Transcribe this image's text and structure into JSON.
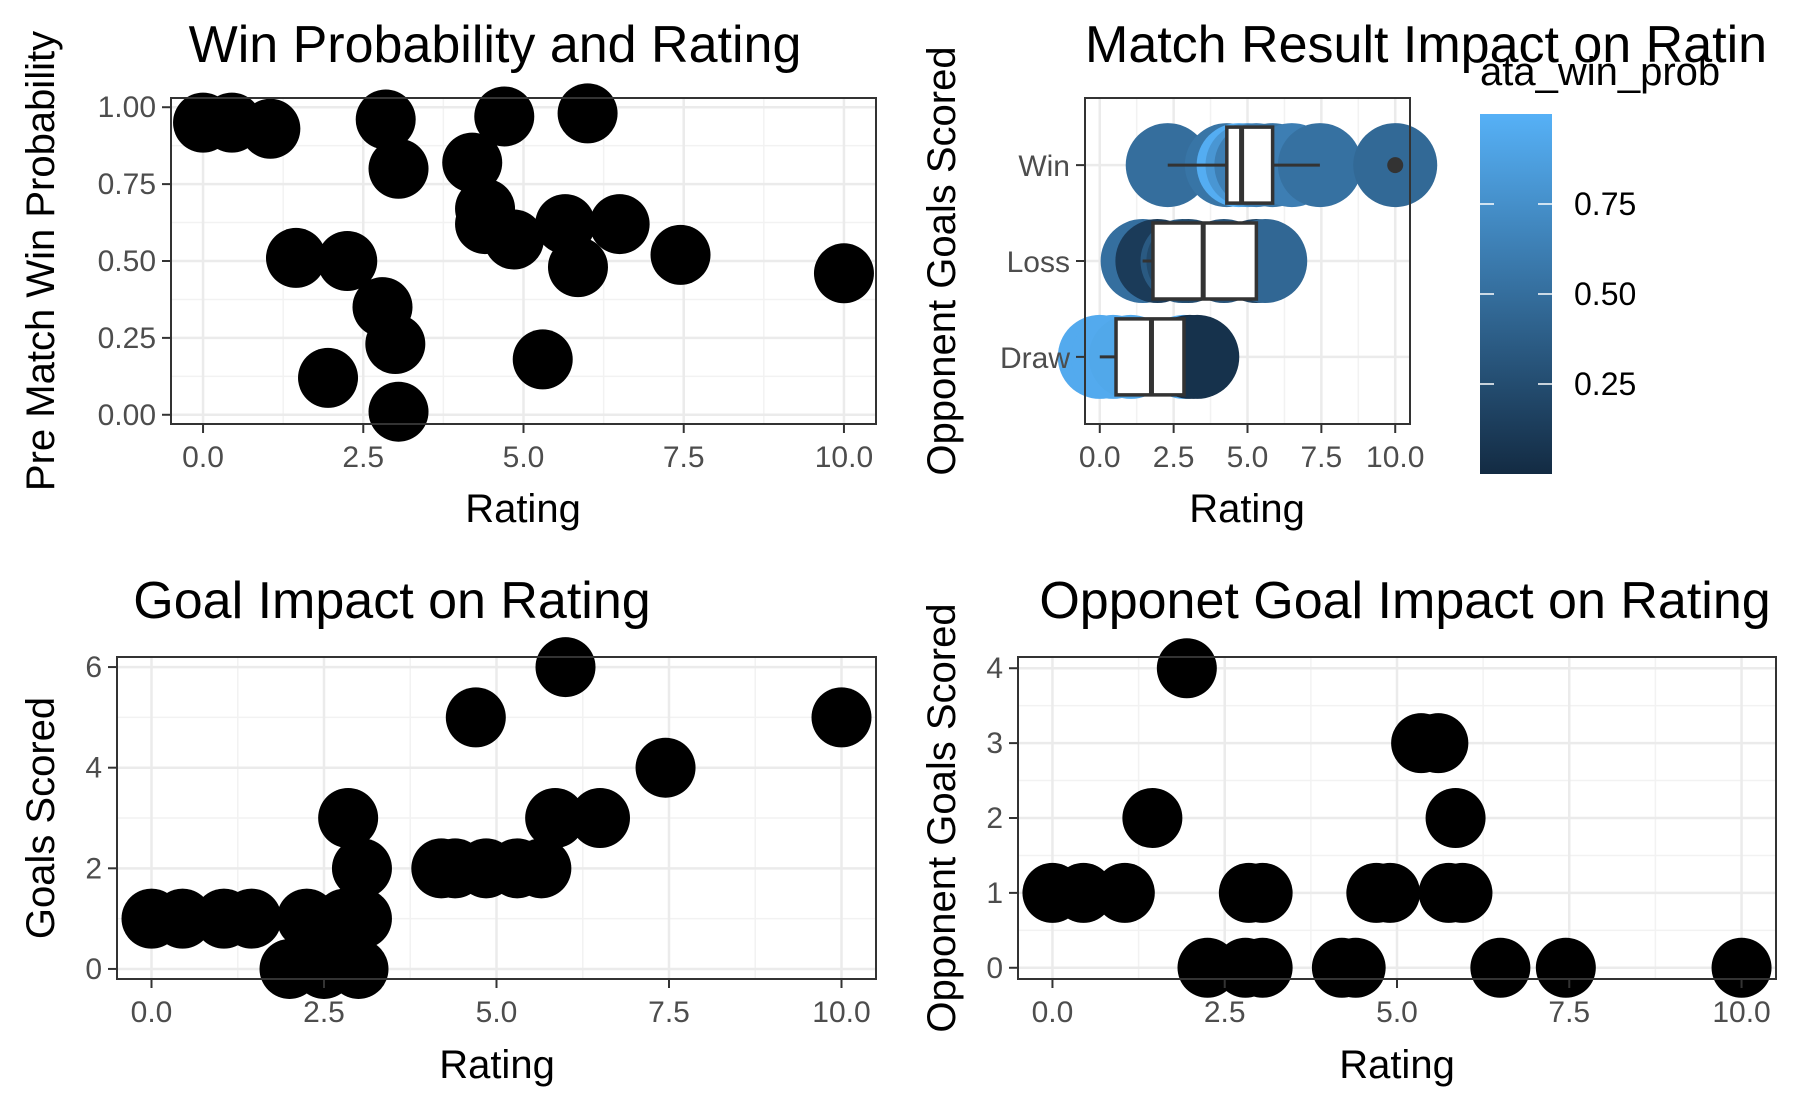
{
  "chart_data": [
    {
      "type": "scatter",
      "title": "Win Probability and Rating",
      "xlabel": "Rating",
      "ylabel": "Pre Match Win Probability",
      "xlim": [
        -0.5,
        10.5
      ],
      "ylim": [
        -0.03,
        1.03
      ],
      "xticks": [
        "0.0",
        "2.5",
        "5.0",
        "7.5",
        "10.0"
      ],
      "yticks": [
        "0.00",
        "0.25",
        "0.50",
        "0.75",
        "1.00"
      ],
      "grid": true,
      "points": [
        {
          "x": 0.0,
          "y": 0.95
        },
        {
          "x": 0.45,
          "y": 0.95
        },
        {
          "x": 1.05,
          "y": 0.93
        },
        {
          "x": 1.45,
          "y": 0.51
        },
        {
          "x": 1.95,
          "y": 0.12
        },
        {
          "x": 2.25,
          "y": 0.5
        },
        {
          "x": 2.8,
          "y": 0.35
        },
        {
          "x": 2.85,
          "y": 0.96
        },
        {
          "x": 3.0,
          "y": 0.23
        },
        {
          "x": 3.05,
          "y": 0.8
        },
        {
          "x": 3.05,
          "y": 0.01
        },
        {
          "x": 4.2,
          "y": 0.82
        },
        {
          "x": 4.4,
          "y": 0.67
        },
        {
          "x": 4.4,
          "y": 0.62
        },
        {
          "x": 4.7,
          "y": 0.97
        },
        {
          "x": 4.85,
          "y": 0.57
        },
        {
          "x": 5.3,
          "y": 0.18
        },
        {
          "x": 5.65,
          "y": 0.62
        },
        {
          "x": 5.85,
          "y": 0.48
        },
        {
          "x": 6.0,
          "y": 0.98
        },
        {
          "x": 6.5,
          "y": 0.62
        },
        {
          "x": 7.45,
          "y": 0.52
        },
        {
          "x": 10.0,
          "y": 0.46
        }
      ]
    },
    {
      "type": "box",
      "title": "Match Result Impact on Ratin",
      "xlabel": "Rating",
      "ylabel": "Opponent Goals Scored",
      "xlim": [
        -0.5,
        10.5
      ],
      "xticks": [
        "0.0",
        "2.5",
        "5.0",
        "7.5",
        "10.0"
      ],
      "categories": [
        "Draw",
        "Loss",
        "Win"
      ],
      "grid": true,
      "boxes": [
        {
          "category": "Win",
          "whisker_low": 2.3,
          "q1": 4.3,
          "median": 4.8,
          "q3": 5.85,
          "whisker_high": 7.45,
          "outliers": [
            10.0
          ]
        },
        {
          "category": "Loss",
          "whisker_low": 1.45,
          "q1": 1.8,
          "median": 3.5,
          "q3": 5.3,
          "whisker_high": 5.3,
          "outliers": []
        },
        {
          "category": "Draw",
          "whisker_low": 0.0,
          "q1": 0.55,
          "median": 1.75,
          "q3": 2.85,
          "whisker_high": 2.85,
          "outliers": []
        }
      ],
      "points": [
        {
          "x": 2.3,
          "y": "Win",
          "c": 0.5
        },
        {
          "x": 4.3,
          "y": "Win",
          "c": 0.55
        },
        {
          "x": 4.7,
          "y": "Win",
          "c": 0.97
        },
        {
          "x": 5.0,
          "y": "Win",
          "c": 0.8
        },
        {
          "x": 5.3,
          "y": "Win",
          "c": 0.62
        },
        {
          "x": 5.85,
          "y": "Win",
          "c": 0.55
        },
        {
          "x": 6.5,
          "y": "Win",
          "c": 0.62
        },
        {
          "x": 7.45,
          "y": "Win",
          "c": 0.52
        },
        {
          "x": 10.0,
          "y": "Win",
          "c": 0.46
        },
        {
          "x": 1.45,
          "y": "Loss",
          "c": 0.51
        },
        {
          "x": 1.95,
          "y": "Loss",
          "c": 0.12
        },
        {
          "x": 2.8,
          "y": "Loss",
          "c": 0.35
        },
        {
          "x": 3.0,
          "y": "Loss",
          "c": 0.23
        },
        {
          "x": 4.2,
          "y": "Loss",
          "c": 0.3
        },
        {
          "x": 5.3,
          "y": "Loss",
          "c": 0.18
        },
        {
          "x": 5.6,
          "y": "Loss",
          "c": 0.45
        },
        {
          "x": 0.0,
          "y": "Draw",
          "c": 0.95
        },
        {
          "x": 0.45,
          "y": "Draw",
          "c": 0.95
        },
        {
          "x": 1.05,
          "y": "Draw",
          "c": 0.93
        },
        {
          "x": 2.85,
          "y": "Draw",
          "c": 0.96
        },
        {
          "x": 3.05,
          "y": "Draw",
          "c": 0.01
        },
        {
          "x": 3.3,
          "y": "Draw",
          "c": 0.05
        }
      ],
      "legend": {
        "title": "ata_win_prob",
        "labels": [
          "0.75",
          "0.50",
          "0.25"
        ],
        "values": [
          0.75,
          0.5,
          0.25
        ],
        "range": [
          0.0,
          1.0
        ],
        "color_low": "#132b43",
        "color_high": "#56b1f7"
      }
    },
    {
      "type": "scatter",
      "title": "Goal Impact on Rating",
      "xlabel": "Rating",
      "ylabel": "Goals Scored",
      "xlim": [
        -0.5,
        10.5
      ],
      "ylim": [
        -0.2,
        6.2
      ],
      "xticks": [
        "0.0",
        "2.5",
        "5.0",
        "7.5",
        "10.0"
      ],
      "yticks": [
        "0",
        "2",
        "4",
        "6"
      ],
      "grid": true,
      "points": [
        {
          "x": 0.0,
          "y": 1
        },
        {
          "x": 0.45,
          "y": 1
        },
        {
          "x": 1.05,
          "y": 1
        },
        {
          "x": 1.45,
          "y": 1
        },
        {
          "x": 2.25,
          "y": 1
        },
        {
          "x": 2.8,
          "y": 1
        },
        {
          "x": 3.05,
          "y": 1
        },
        {
          "x": 2.0,
          "y": 0
        },
        {
          "x": 2.5,
          "y": 0
        },
        {
          "x": 3.0,
          "y": 0
        },
        {
          "x": 2.85,
          "y": 3
        },
        {
          "x": 3.05,
          "y": 2
        },
        {
          "x": 4.2,
          "y": 2
        },
        {
          "x": 4.4,
          "y": 2
        },
        {
          "x": 4.85,
          "y": 2
        },
        {
          "x": 5.3,
          "y": 2
        },
        {
          "x": 5.65,
          "y": 2
        },
        {
          "x": 5.85,
          "y": 3
        },
        {
          "x": 6.0,
          "y": 6
        },
        {
          "x": 4.7,
          "y": 5
        },
        {
          "x": 6.5,
          "y": 3
        },
        {
          "x": 7.45,
          "y": 4
        },
        {
          "x": 10.0,
          "y": 5
        }
      ]
    },
    {
      "type": "scatter",
      "title": "Opponet Goal Impact on Rating",
      "xlabel": "Rating",
      "ylabel": "Opponent Goals Scored",
      "xlim": [
        -0.5,
        10.5
      ],
      "ylim": [
        -0.15,
        4.15
      ],
      "xticks": [
        "0.0",
        "2.5",
        "5.0",
        "7.5",
        "10.0"
      ],
      "yticks": [
        "0",
        "1",
        "2",
        "3",
        "4"
      ],
      "grid": true,
      "points": [
        {
          "x": 0.0,
          "y": 1
        },
        {
          "x": 0.45,
          "y": 1
        },
        {
          "x": 1.05,
          "y": 1
        },
        {
          "x": 1.45,
          "y": 2
        },
        {
          "x": 1.95,
          "y": 4
        },
        {
          "x": 2.25,
          "y": 0
        },
        {
          "x": 2.8,
          "y": 0
        },
        {
          "x": 3.05,
          "y": 0
        },
        {
          "x": 2.85,
          "y": 1
        },
        {
          "x": 3.05,
          "y": 1
        },
        {
          "x": 4.2,
          "y": 0
        },
        {
          "x": 4.4,
          "y": 0
        },
        {
          "x": 4.7,
          "y": 1
        },
        {
          "x": 4.9,
          "y": 1
        },
        {
          "x": 5.35,
          "y": 3
        },
        {
          "x": 5.6,
          "y": 3
        },
        {
          "x": 5.85,
          "y": 2
        },
        {
          "x": 5.75,
          "y": 1
        },
        {
          "x": 5.95,
          "y": 1
        },
        {
          "x": 6.5,
          "y": 0
        },
        {
          "x": 7.45,
          "y": 0
        },
        {
          "x": 10.0,
          "y": 0
        }
      ]
    }
  ]
}
